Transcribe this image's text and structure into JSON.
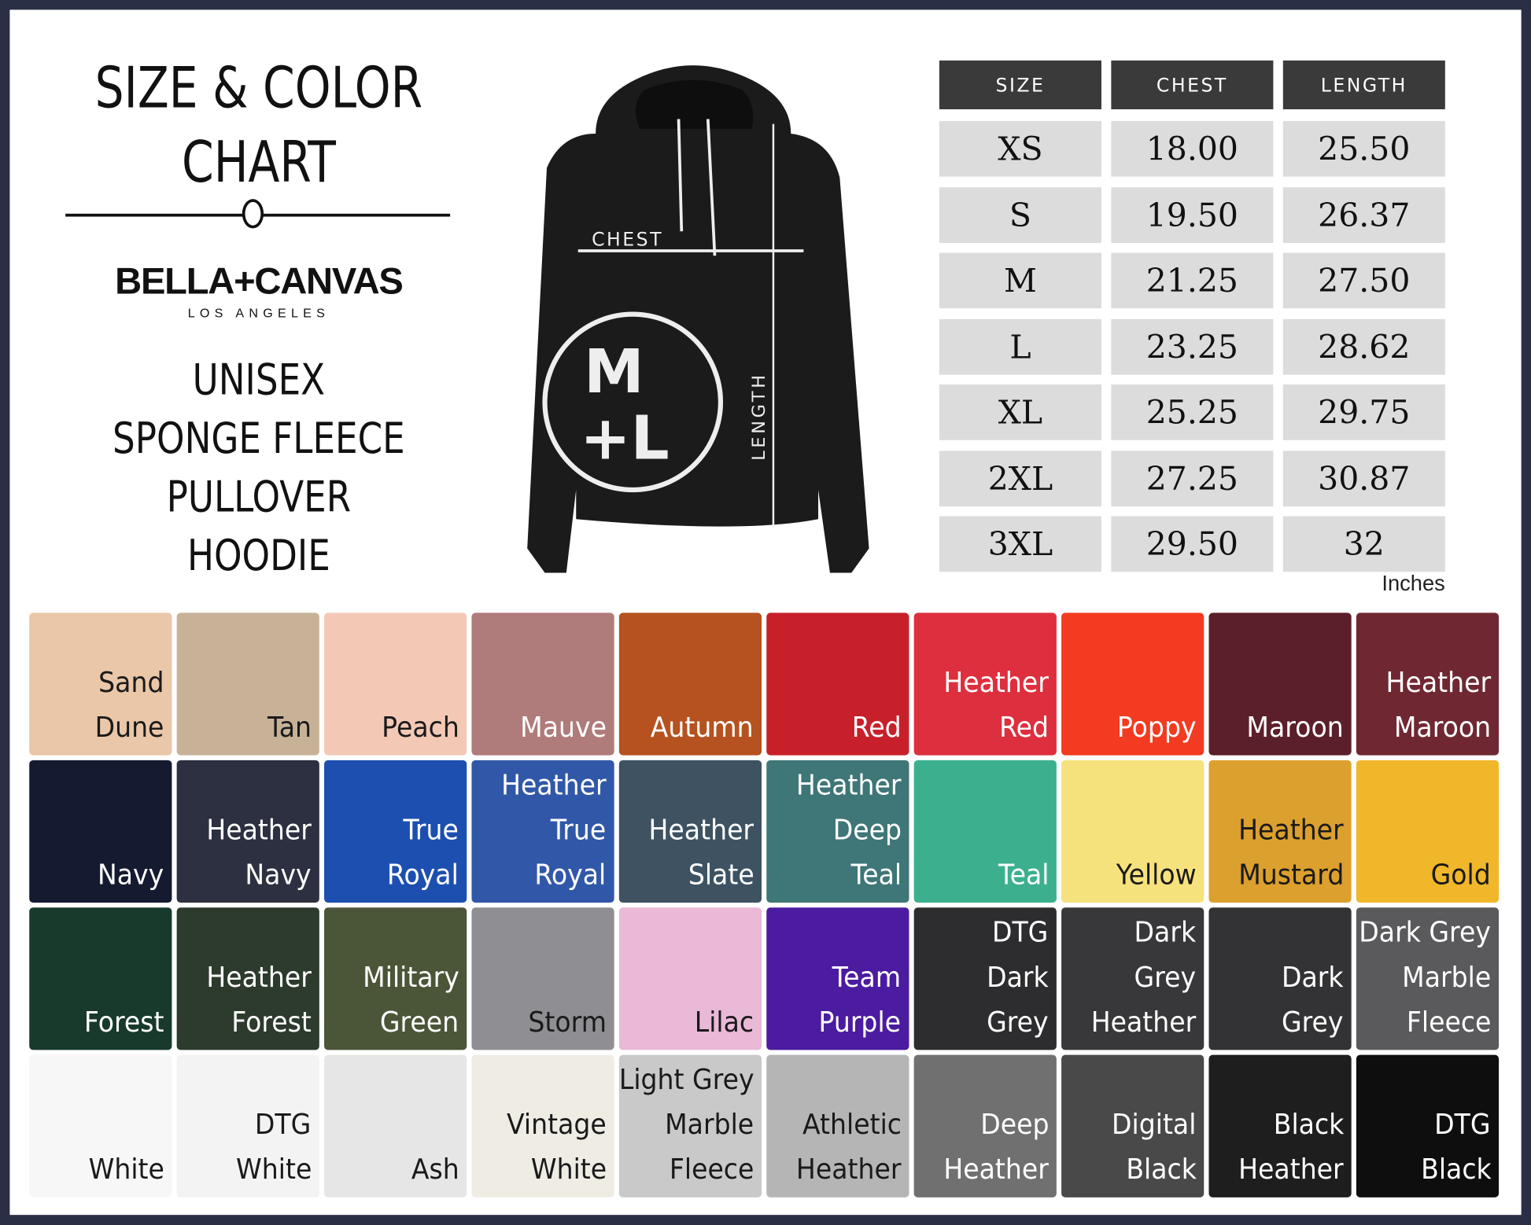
{
  "header": {
    "title_lines": [
      "SIZE & COLOR",
      "CHART"
    ],
    "brand": "BELLA+CANVAS",
    "brand_sub": "LOS ANGELES",
    "product_lines": [
      "UNISEX",
      "SPONGE FLEECE",
      "PULLOVER",
      "HOODIE"
    ]
  },
  "hoodie": {
    "chest_label": "CHEST",
    "length_label": "LENGTH",
    "badge_line1": "M",
    "badge_line2": "+L"
  },
  "size_table": {
    "columns": [
      "SIZE",
      "CHEST",
      "LENGTH"
    ],
    "rows": [
      [
        "XS",
        "18.00",
        "25.50"
      ],
      [
        "S",
        "19.50",
        "26.37"
      ],
      [
        "M",
        "21.25",
        "27.50"
      ],
      [
        "L",
        "23.25",
        "28.62"
      ],
      [
        "XL",
        "25.25",
        "29.75"
      ],
      [
        "2XL",
        "27.25",
        "30.87"
      ],
      [
        "3XL",
        "29.50",
        "32"
      ]
    ],
    "unit": "Inches"
  },
  "colors": [
    {
      "lines": [
        "Sand",
        "Dune"
      ],
      "color": "#e9c7a8",
      "text": "#1a1a1a"
    },
    {
      "lines": [
        "Tan"
      ],
      "color": "#c8b297",
      "text": "#1a1a1a"
    },
    {
      "lines": [
        "Peach"
      ],
      "color": "#f3c9b6",
      "text": "#1a1a1a"
    },
    {
      "lines": [
        "Mauve"
      ],
      "color": "#b07b7b",
      "text": "#ffffff"
    },
    {
      "lines": [
        "Autumn"
      ],
      "color": "#b5521f",
      "text": "#ffffff"
    },
    {
      "lines": [
        "Red"
      ],
      "color": "#c8202a",
      "text": "#ffffff"
    },
    {
      "lines": [
        "Heather",
        "Red"
      ],
      "color": "#de2f3e",
      "text": "#ffffff"
    },
    {
      "lines": [
        "Poppy"
      ],
      "color": "#f23b20",
      "text": "#ffffff"
    },
    {
      "lines": [
        "Maroon"
      ],
      "color": "#5b1f29",
      "text": "#ffffff"
    },
    {
      "lines": [
        "Heather",
        "Maroon"
      ],
      "color": "#6f2832",
      "text": "#ffffff"
    },
    {
      "lines": [
        "Navy"
      ],
      "color": "#141a30",
      "text": "#ffffff"
    },
    {
      "lines": [
        "Heather",
        "Navy"
      ],
      "color": "#2c3040",
      "text": "#ffffff"
    },
    {
      "lines": [
        "True",
        "Royal"
      ],
      "color": "#1d4fb0",
      "text": "#ffffff"
    },
    {
      "lines": [
        "Heather",
        "True",
        "Royal"
      ],
      "color": "#3158a8",
      "text": "#ffffff"
    },
    {
      "lines": [
        "Heather",
        "Slate"
      ],
      "color": "#3e5262",
      "text": "#ffffff"
    },
    {
      "lines": [
        "Heather",
        "Deep",
        "Teal"
      ],
      "color": "#3f7677",
      "text": "#ffffff"
    },
    {
      "lines": [
        "Teal"
      ],
      "color": "#3cb08e",
      "text": "#ffffff"
    },
    {
      "lines": [
        "Yellow"
      ],
      "color": "#f6e27c",
      "text": "#1a1a1a"
    },
    {
      "lines": [
        "Heather",
        "Mustard"
      ],
      "color": "#dca02e",
      "text": "#1a1a1a"
    },
    {
      "lines": [
        "Gold"
      ],
      "color": "#f0b72a",
      "text": "#1a1a1a"
    },
    {
      "lines": [
        "Forest"
      ],
      "color": "#173a2c",
      "text": "#ffffff"
    },
    {
      "lines": [
        "Heather",
        "Forest"
      ],
      "color": "#2c3b2c",
      "text": "#ffffff"
    },
    {
      "lines": [
        "Military",
        "Green"
      ],
      "color": "#4b5538",
      "text": "#ffffff"
    },
    {
      "lines": [
        "Storm"
      ],
      "color": "#8f8e93",
      "text": "#1a1a1a"
    },
    {
      "lines": [
        "Lilac"
      ],
      "color": "#e9b9d7",
      "text": "#1a1a1a"
    },
    {
      "lines": [
        "Team",
        "Purple"
      ],
      "color": "#4b1ba0",
      "text": "#ffffff"
    },
    {
      "lines": [
        "DTG",
        "Dark",
        "Grey"
      ],
      "color": "#2d2d2f",
      "text": "#ffffff"
    },
    {
      "lines": [
        "Dark",
        "Grey",
        "Heather"
      ],
      "color": "#38383a",
      "text": "#ffffff"
    },
    {
      "lines": [
        "Dark",
        "Grey"
      ],
      "color": "#333335",
      "text": "#ffffff"
    },
    {
      "lines": [
        "Dark Grey",
        "Marble",
        "Fleece"
      ],
      "color": "#5a5a5c",
      "text": "#ffffff"
    },
    {
      "lines": [
        "White"
      ],
      "color": "#f7f7f7",
      "text": "#1a1a1a"
    },
    {
      "lines": [
        "DTG",
        "White"
      ],
      "color": "#f3f3f3",
      "text": "#1a1a1a"
    },
    {
      "lines": [
        "Ash"
      ],
      "color": "#e6e6e6",
      "text": "#1a1a1a"
    },
    {
      "lines": [
        "Vintage",
        "White"
      ],
      "color": "#efece4",
      "text": "#1a1a1a"
    },
    {
      "lines": [
        "Light Grey",
        "Marble",
        "Fleece"
      ],
      "color": "#c9c9c9",
      "text": "#1a1a1a"
    },
    {
      "lines": [
        "Athletic",
        "Heather"
      ],
      "color": "#b5b5b5",
      "text": "#1a1a1a"
    },
    {
      "lines": [
        "Deep",
        "Heather"
      ],
      "color": "#707070",
      "text": "#ffffff"
    },
    {
      "lines": [
        "Digital",
        "Black"
      ],
      "color": "#494949",
      "text": "#ffffff"
    },
    {
      "lines": [
        "Black",
        "Heather"
      ],
      "color": "#1e1e1e",
      "text": "#ffffff"
    },
    {
      "lines": [
        "DTG",
        "Black"
      ],
      "color": "#0e0e0e",
      "text": "#ffffff"
    }
  ]
}
